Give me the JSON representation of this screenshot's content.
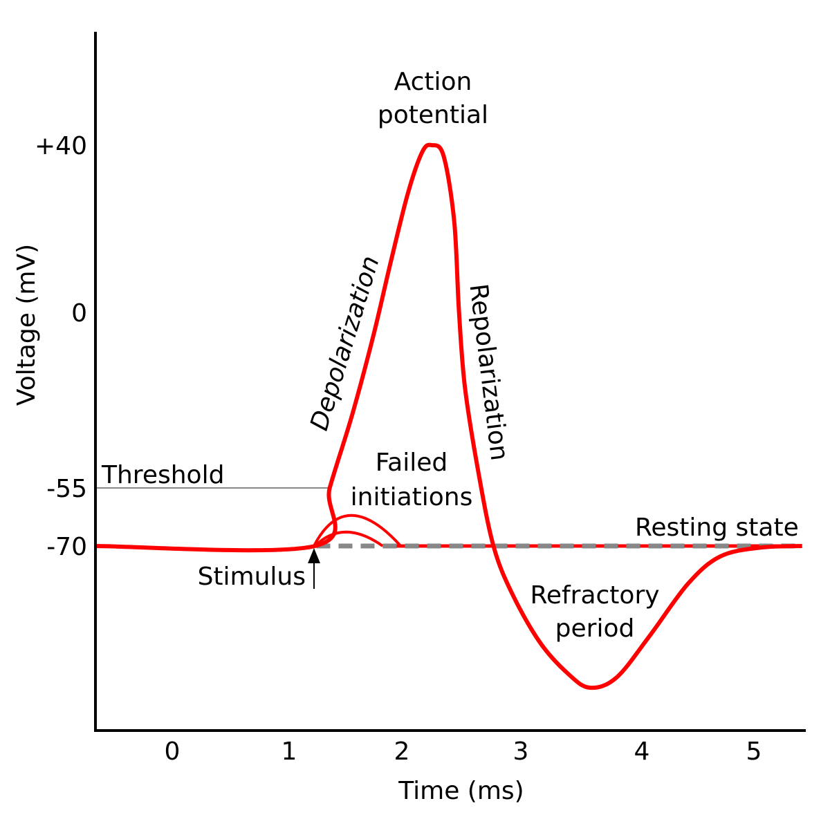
{
  "chart_data": {
    "type": "line",
    "xlabel": "Time (ms)",
    "ylabel": "Voltage (mV)",
    "x_ticks": [
      0,
      1,
      2,
      3,
      4,
      5
    ],
    "x_tick_labels": [
      "0",
      "1",
      "2",
      "3",
      "4",
      "5"
    ],
    "y_ticks": [
      40,
      0,
      -55,
      -70
    ],
    "y_tick_labels": [
      "+40",
      "0",
      "-55",
      "-70"
    ],
    "grid": false,
    "colors": {
      "curve": "#ff0000",
      "threshold": "#888888",
      "resting": "#888888",
      "axis": "#000000"
    },
    "series": [
      {
        "role": "action-potential",
        "x": [
          -0.66,
          1.23,
          1.36,
          1.56,
          1.75,
          1.9,
          2.05,
          2.17,
          2.25,
          2.35,
          2.44,
          2.48,
          2.53,
          2.64,
          2.77,
          2.93,
          3.16,
          3.39,
          3.57,
          3.79,
          4.07,
          4.41,
          4.7,
          5.06,
          5.43
        ],
        "y": [
          -70,
          -70,
          -55,
          -32,
          -6.9,
          11.9,
          28.4,
          38.3,
          40,
          37.5,
          21.8,
          0.3,
          -23.4,
          -49.4,
          -70,
          -82.5,
          -95,
          -103,
          -106.6,
          -104,
          -93.2,
          -79.8,
          -72.7,
          -70.4,
          -70
        ]
      },
      {
        "role": "failed-initiation",
        "x": [
          1.22,
          1.5,
          1.99
        ],
        "y": [
          -70,
          -62.1,
          -70
        ]
      },
      {
        "role": "failed-initiation",
        "x": [
          1.23,
          1.48,
          1.83
        ],
        "y": [
          -70,
          -66.4,
          -70
        ]
      }
    ],
    "threshold": {
      "value": -55,
      "label": "Threshold"
    },
    "resting": {
      "value": -70,
      "label": "Resting state"
    },
    "annotations": {
      "action_potential": [
        "Action",
        "potential"
      ],
      "depolarization": "Depolarization",
      "repolarization": "Repolarization",
      "failed_initiations": [
        "Failed",
        "initiations"
      ],
      "refractory_period": [
        "Refractory",
        "period"
      ],
      "stimulus": "Stimulus"
    }
  }
}
